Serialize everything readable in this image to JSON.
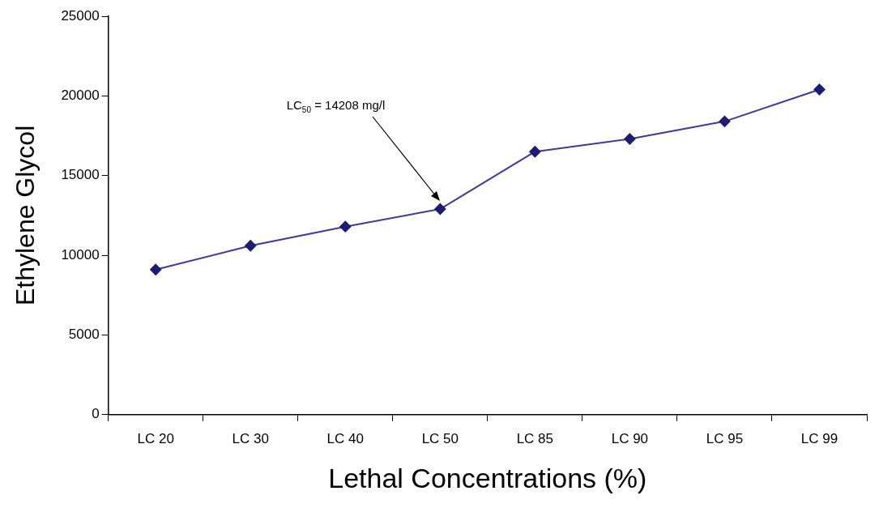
{
  "chart_data": {
    "type": "line",
    "xlabel": "Lethal Concentrations (%)",
    "ylabel": "Ethylene Glycol",
    "categories": [
      "LC 20",
      "LC 30",
      "LC 40",
      "LC 50",
      "LC 85",
      "LC 90",
      "LC 95",
      "LC 99"
    ],
    "series": [
      {
        "color": "#3a3aa0",
        "values": [
          9100,
          10600,
          11800,
          12900,
          16500,
          17300,
          18400,
          20400
        ]
      }
    ],
    "ylim": [
      0,
      25000
    ],
    "yticks": [
      0,
      5000,
      10000,
      15000,
      20000,
      25000
    ],
    "grid": false,
    "legend": false,
    "marker": "diamond",
    "line_style": "solid",
    "annotations": [
      "LC$_{50}$ = 14208 mg/l"
    ]
  }
}
